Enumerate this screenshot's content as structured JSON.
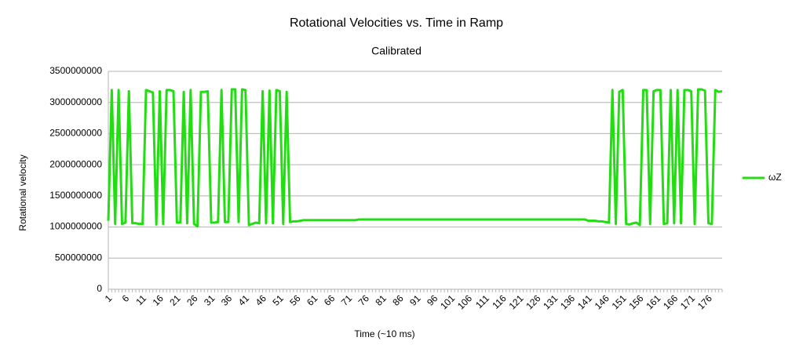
{
  "chart_data": {
    "type": "line",
    "title": "Rotational Velocities vs. Time in Ramp",
    "subtitle": "Calibrated",
    "x_label": "Time (~10 ms)",
    "y_label": "Rotational velocity",
    "ylim": [
      0,
      3500000000
    ],
    "yticks": [
      0,
      500000000,
      1000000000,
      1500000000,
      2000000000,
      2500000000,
      3000000000,
      3500000000
    ],
    "grid": true,
    "legend": "right",
    "categories": [
      1,
      null,
      null,
      null,
      null,
      6,
      null,
      null,
      null,
      null,
      11,
      null,
      null,
      null,
      null,
      16,
      null,
      null,
      null,
      null,
      21,
      null,
      null,
      null,
      null,
      26,
      null,
      null,
      null,
      null,
      31,
      null,
      null,
      null,
      null,
      36,
      null,
      null,
      null,
      null,
      41,
      null,
      null,
      null,
      null,
      46,
      null,
      null,
      null,
      null,
      51,
      null,
      null,
      null,
      null,
      56,
      null,
      null,
      null,
      null,
      61,
      null,
      null,
      null,
      null,
      66,
      null,
      null,
      null,
      null,
      71,
      null,
      null,
      null,
      null,
      76,
      null,
      null,
      null,
      null,
      81,
      null,
      null,
      null,
      null,
      86,
      null,
      null,
      null,
      null,
      91,
      null,
      null,
      null,
      null,
      96,
      null,
      null,
      null,
      null,
      101,
      null,
      null,
      null,
      null,
      106,
      null,
      null,
      null,
      null,
      111,
      null,
      null,
      null,
      null,
      116,
      null,
      null,
      null,
      null,
      121,
      null,
      null,
      null,
      null,
      126,
      null,
      null,
      null,
      null,
      131,
      null,
      null,
      null,
      null,
      136,
      null,
      null,
      null,
      null,
      141,
      null,
      null,
      null,
      null,
      146,
      null,
      null,
      null,
      null,
      151,
      null,
      null,
      null,
      null,
      156,
      null,
      null,
      null,
      null,
      161,
      null,
      null,
      null,
      null,
      166,
      null,
      null,
      null,
      null,
      171,
      null,
      null,
      null,
      null,
      176,
      null,
      null,
      null,
      null
    ],
    "series": [
      {
        "name": "ωZ",
        "color": "#22dd11",
        "values": [
          1100000000,
          3200000000,
          1050000000,
          3200000000,
          1050000000,
          1070000000,
          3180000000,
          1060000000,
          1060000000,
          1050000000,
          1050000000,
          3200000000,
          3180000000,
          3160000000,
          1040000000,
          3180000000,
          1050000000,
          3200000000,
          3200000000,
          3180000000,
          1070000000,
          1070000000,
          3170000000,
          1060000000,
          3200000000,
          1050000000,
          1010000000,
          3170000000,
          3170000000,
          3180000000,
          1070000000,
          1070000000,
          1080000000,
          3200000000,
          1080000000,
          1080000000,
          3210000000,
          3210000000,
          1080000000,
          3210000000,
          3200000000,
          1030000000,
          1050000000,
          1070000000,
          1060000000,
          3180000000,
          1060000000,
          3190000000,
          1060000000,
          3200000000,
          3180000000,
          1050000000,
          3170000000,
          1080000000,
          1090000000,
          1090000000,
          1100000000,
          1110000000,
          1110000000,
          1110000000,
          1110000000,
          1110000000,
          1110000000,
          1110000000,
          1110000000,
          1110000000,
          1110000000,
          1110000000,
          1110000000,
          1110000000,
          1110000000,
          1110000000,
          1110000000,
          1120000000,
          1120000000,
          1120000000,
          1120000000,
          1120000000,
          1120000000,
          1120000000,
          1120000000,
          1120000000,
          1120000000,
          1120000000,
          1120000000,
          1120000000,
          1120000000,
          1120000000,
          1120000000,
          1120000000,
          1120000000,
          1120000000,
          1120000000,
          1120000000,
          1120000000,
          1120000000,
          1120000000,
          1120000000,
          1120000000,
          1120000000,
          1120000000,
          1120000000,
          1120000000,
          1120000000,
          1120000000,
          1120000000,
          1120000000,
          1120000000,
          1120000000,
          1120000000,
          1120000000,
          1120000000,
          1120000000,
          1120000000,
          1120000000,
          1120000000,
          1120000000,
          1120000000,
          1120000000,
          1120000000,
          1120000000,
          1120000000,
          1120000000,
          1120000000,
          1120000000,
          1120000000,
          1120000000,
          1120000000,
          1120000000,
          1120000000,
          1120000000,
          1120000000,
          1120000000,
          1120000000,
          1120000000,
          1120000000,
          1120000000,
          1120000000,
          1120000000,
          1120000000,
          1100000000,
          1100000000,
          1100000000,
          1090000000,
          1090000000,
          1080000000,
          1070000000,
          3200000000,
          1050000000,
          3170000000,
          3200000000,
          1050000000,
          1040000000,
          1060000000,
          1070000000,
          1030000000,
          3200000000,
          3200000000,
          1050000000,
          3180000000,
          3200000000,
          3200000000,
          1050000000,
          1060000000,
          3200000000,
          1060000000,
          3200000000,
          1060000000,
          3200000000,
          3200000000,
          3180000000,
          1050000000,
          3210000000,
          3210000000,
          3190000000,
          1060000000,
          1050000000,
          3200000000,
          3170000000,
          3180000000
        ]
      }
    ]
  }
}
